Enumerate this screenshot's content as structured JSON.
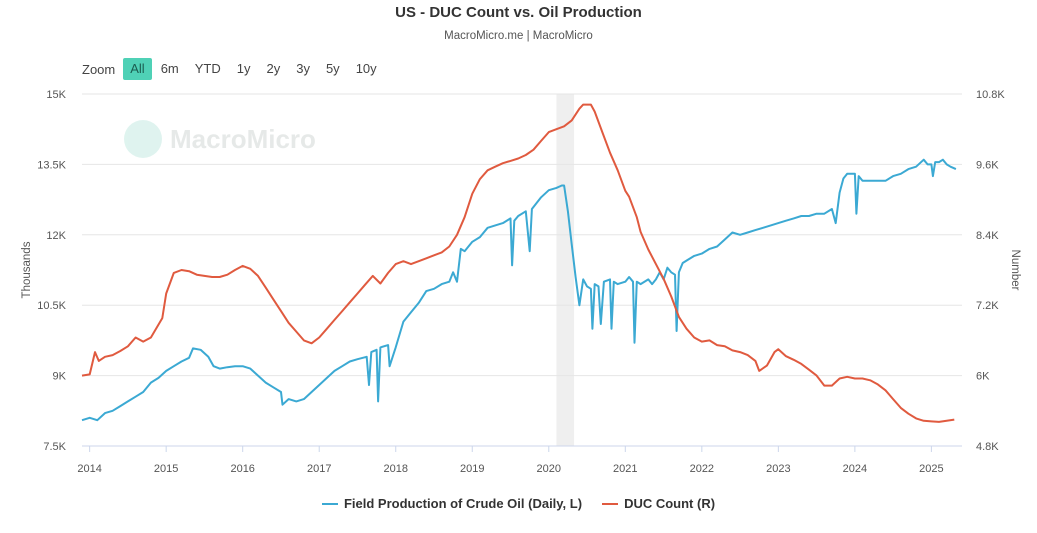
{
  "title": "US - DUC Count vs. Oil Production",
  "subtitle": "MacroMicro.me | MacroMicro",
  "watermark": "MacroMicro",
  "zoom": {
    "label": "Zoom",
    "buttons": [
      "All",
      "6m",
      "YTD",
      "1y",
      "2y",
      "3y",
      "5y",
      "10y"
    ],
    "active": "All"
  },
  "colors": {
    "oil": "#3ba9d3",
    "duc": "#e05a3f",
    "recession": "#efefef",
    "grid": "#e6e6e6"
  },
  "chart_data": {
    "type": "line",
    "title": "US - DUC Count vs. Oil Production",
    "x_ticks": [
      "2014",
      "2015",
      "2016",
      "2017",
      "2018",
      "2019",
      "2020",
      "2021",
      "2022",
      "2023",
      "2024",
      "2025"
    ],
    "xlim": [
      2013.9,
      2025.4
    ],
    "y_left": {
      "label": "Thousands",
      "ticks": [
        "7.5K",
        "9K",
        "10.5K",
        "12K",
        "13.5K",
        "15K"
      ],
      "range": [
        7500,
        15000
      ]
    },
    "y_right": {
      "label": "Number",
      "ticks": [
        "4.8K",
        "6K",
        "7.2K",
        "8.4K",
        "9.6K",
        "10.8K"
      ],
      "range": [
        4800,
        10800
      ]
    },
    "shaded_period": [
      2020.1,
      2020.33
    ],
    "grid": true,
    "legend_position": "bottom",
    "series": [
      {
        "name": "Field Production of Crude Oil (Daily, L)",
        "axis": "left",
        "points": [
          [
            2013.9,
            8050
          ],
          [
            2014.0,
            8100
          ],
          [
            2014.1,
            8050
          ],
          [
            2014.2,
            8200
          ],
          [
            2014.3,
            8250
          ],
          [
            2014.4,
            8350
          ],
          [
            2014.5,
            8450
          ],
          [
            2014.6,
            8550
          ],
          [
            2014.7,
            8650
          ],
          [
            2014.8,
            8850
          ],
          [
            2014.9,
            8950
          ],
          [
            2015.0,
            9100
          ],
          [
            2015.1,
            9200
          ],
          [
            2015.2,
            9300
          ],
          [
            2015.3,
            9380
          ],
          [
            2015.35,
            9580
          ],
          [
            2015.45,
            9550
          ],
          [
            2015.55,
            9400
          ],
          [
            2015.62,
            9200
          ],
          [
            2015.7,
            9150
          ],
          [
            2015.8,
            9180
          ],
          [
            2015.9,
            9200
          ],
          [
            2016.0,
            9200
          ],
          [
            2016.1,
            9150
          ],
          [
            2016.2,
            9000
          ],
          [
            2016.3,
            8850
          ],
          [
            2016.4,
            8750
          ],
          [
            2016.5,
            8650
          ],
          [
            2016.52,
            8380
          ],
          [
            2016.6,
            8500
          ],
          [
            2016.7,
            8450
          ],
          [
            2016.8,
            8500
          ],
          [
            2016.9,
            8650
          ],
          [
            2017.0,
            8800
          ],
          [
            2017.1,
            8950
          ],
          [
            2017.2,
            9100
          ],
          [
            2017.3,
            9200
          ],
          [
            2017.4,
            9300
          ],
          [
            2017.5,
            9350
          ],
          [
            2017.62,
            9400
          ],
          [
            2017.65,
            8800
          ],
          [
            2017.68,
            9500
          ],
          [
            2017.75,
            9550
          ],
          [
            2017.77,
            8450
          ],
          [
            2017.8,
            9600
          ],
          [
            2017.9,
            9650
          ],
          [
            2017.92,
            9200
          ],
          [
            2018.0,
            9600
          ],
          [
            2018.1,
            10150
          ],
          [
            2018.2,
            10350
          ],
          [
            2018.3,
            10550
          ],
          [
            2018.4,
            10800
          ],
          [
            2018.5,
            10850
          ],
          [
            2018.6,
            10950
          ],
          [
            2018.7,
            11000
          ],
          [
            2018.75,
            11200
          ],
          [
            2018.8,
            11000
          ],
          [
            2018.85,
            11700
          ],
          [
            2018.9,
            11650
          ],
          [
            2019.0,
            11850
          ],
          [
            2019.1,
            11950
          ],
          [
            2019.2,
            12150
          ],
          [
            2019.3,
            12200
          ],
          [
            2019.4,
            12250
          ],
          [
            2019.5,
            12350
          ],
          [
            2019.52,
            11350
          ],
          [
            2019.55,
            12300
          ],
          [
            2019.6,
            12400
          ],
          [
            2019.7,
            12500
          ],
          [
            2019.75,
            11650
          ],
          [
            2019.78,
            12550
          ],
          [
            2019.9,
            12800
          ],
          [
            2020.0,
            12950
          ],
          [
            2020.1,
            13000
          ],
          [
            2020.17,
            13050
          ],
          [
            2020.2,
            13050
          ],
          [
            2020.25,
            12500
          ],
          [
            2020.3,
            11800
          ],
          [
            2020.35,
            11100
          ],
          [
            2020.4,
            10500
          ],
          [
            2020.45,
            11050
          ],
          [
            2020.5,
            10900
          ],
          [
            2020.55,
            10850
          ],
          [
            2020.57,
            10000
          ],
          [
            2020.6,
            10950
          ],
          [
            2020.65,
            10900
          ],
          [
            2020.68,
            10100
          ],
          [
            2020.72,
            11000
          ],
          [
            2020.8,
            11050
          ],
          [
            2020.82,
            10000
          ],
          [
            2020.85,
            11000
          ],
          [
            2020.9,
            10950
          ],
          [
            2021.0,
            11000
          ],
          [
            2021.05,
            11100
          ],
          [
            2021.1,
            11000
          ],
          [
            2021.12,
            9700
          ],
          [
            2021.15,
            11000
          ],
          [
            2021.2,
            10950
          ],
          [
            2021.3,
            11050
          ],
          [
            2021.35,
            10950
          ],
          [
            2021.4,
            11050
          ],
          [
            2021.45,
            11200
          ],
          [
            2021.5,
            11050
          ],
          [
            2021.55,
            11300
          ],
          [
            2021.6,
            11200
          ],
          [
            2021.65,
            11150
          ],
          [
            2021.67,
            9950
          ],
          [
            2021.7,
            11200
          ],
          [
            2021.75,
            11400
          ],
          [
            2021.8,
            11450
          ],
          [
            2021.9,
            11550
          ],
          [
            2022.0,
            11600
          ],
          [
            2022.1,
            11700
          ],
          [
            2022.2,
            11750
          ],
          [
            2022.3,
            11900
          ],
          [
            2022.4,
            12050
          ],
          [
            2022.5,
            12000
          ],
          [
            2022.6,
            12050
          ],
          [
            2022.7,
            12100
          ],
          [
            2022.8,
            12150
          ],
          [
            2022.9,
            12200
          ],
          [
            2023.0,
            12250
          ],
          [
            2023.1,
            12300
          ],
          [
            2023.2,
            12350
          ],
          [
            2023.3,
            12400
          ],
          [
            2023.4,
            12400
          ],
          [
            2023.5,
            12450
          ],
          [
            2023.6,
            12450
          ],
          [
            2023.7,
            12550
          ],
          [
            2023.75,
            12250
          ],
          [
            2023.8,
            12900
          ],
          [
            2023.85,
            13200
          ],
          [
            2023.9,
            13300
          ],
          [
            2024.0,
            13300
          ],
          [
            2024.02,
            12450
          ],
          [
            2024.05,
            13250
          ],
          [
            2024.1,
            13150
          ],
          [
            2024.2,
            13150
          ],
          [
            2024.3,
            13150
          ],
          [
            2024.4,
            13150
          ],
          [
            2024.5,
            13250
          ],
          [
            2024.6,
            13300
          ],
          [
            2024.7,
            13400
          ],
          [
            2024.8,
            13450
          ],
          [
            2024.9,
            13600
          ],
          [
            2024.95,
            13500
          ],
          [
            2025.0,
            13500
          ],
          [
            2025.02,
            13250
          ],
          [
            2025.05,
            13550
          ],
          [
            2025.1,
            13550
          ],
          [
            2025.15,
            13600
          ],
          [
            2025.2,
            13500
          ],
          [
            2025.25,
            13450
          ],
          [
            2025.32,
            13400
          ]
        ]
      },
      {
        "name": "DUC Count (R)",
        "axis": "right",
        "points": [
          [
            2013.9,
            6000
          ],
          [
            2014.0,
            6020
          ],
          [
            2014.07,
            6400
          ],
          [
            2014.12,
            6250
          ],
          [
            2014.2,
            6320
          ],
          [
            2014.3,
            6350
          ],
          [
            2014.4,
            6420
          ],
          [
            2014.5,
            6500
          ],
          [
            2014.6,
            6650
          ],
          [
            2014.7,
            6580
          ],
          [
            2014.8,
            6650
          ],
          [
            2014.95,
            6980
          ],
          [
            2015.0,
            7400
          ],
          [
            2015.1,
            7750
          ],
          [
            2015.2,
            7800
          ],
          [
            2015.3,
            7780
          ],
          [
            2015.4,
            7720
          ],
          [
            2015.5,
            7700
          ],
          [
            2015.6,
            7680
          ],
          [
            2015.7,
            7680
          ],
          [
            2015.8,
            7720
          ],
          [
            2015.9,
            7800
          ],
          [
            2016.0,
            7870
          ],
          [
            2016.1,
            7820
          ],
          [
            2016.2,
            7700
          ],
          [
            2016.3,
            7500
          ],
          [
            2016.4,
            7300
          ],
          [
            2016.5,
            7100
          ],
          [
            2016.6,
            6900
          ],
          [
            2016.7,
            6750
          ],
          [
            2016.8,
            6600
          ],
          [
            2016.9,
            6550
          ],
          [
            2017.0,
            6650
          ],
          [
            2017.1,
            6800
          ],
          [
            2017.2,
            6950
          ],
          [
            2017.3,
            7100
          ],
          [
            2017.4,
            7250
          ],
          [
            2017.5,
            7400
          ],
          [
            2017.6,
            7550
          ],
          [
            2017.7,
            7700
          ],
          [
            2017.8,
            7570
          ],
          [
            2017.9,
            7750
          ],
          [
            2018.0,
            7900
          ],
          [
            2018.1,
            7950
          ],
          [
            2018.2,
            7900
          ],
          [
            2018.3,
            7950
          ],
          [
            2018.4,
            8000
          ],
          [
            2018.5,
            8050
          ],
          [
            2018.6,
            8100
          ],
          [
            2018.7,
            8200
          ],
          [
            2018.8,
            8400
          ],
          [
            2018.9,
            8700
          ],
          [
            2019.0,
            9100
          ],
          [
            2019.1,
            9350
          ],
          [
            2019.2,
            9500
          ],
          [
            2019.3,
            9560
          ],
          [
            2019.4,
            9620
          ],
          [
            2019.5,
            9660
          ],
          [
            2019.6,
            9700
          ],
          [
            2019.7,
            9760
          ],
          [
            2019.8,
            9850
          ],
          [
            2019.9,
            10000
          ],
          [
            2020.0,
            10150
          ],
          [
            2020.1,
            10200
          ],
          [
            2020.2,
            10250
          ],
          [
            2020.3,
            10350
          ],
          [
            2020.4,
            10550
          ],
          [
            2020.45,
            10620
          ],
          [
            2020.55,
            10620
          ],
          [
            2020.6,
            10500
          ],
          [
            2020.7,
            10150
          ],
          [
            2020.8,
            9800
          ],
          [
            2020.9,
            9500
          ],
          [
            2021.0,
            9150
          ],
          [
            2021.05,
            9050
          ],
          [
            2021.15,
            8700
          ],
          [
            2021.2,
            8450
          ],
          [
            2021.3,
            8150
          ],
          [
            2021.4,
            7900
          ],
          [
            2021.5,
            7650
          ],
          [
            2021.6,
            7350
          ],
          [
            2021.7,
            7000
          ],
          [
            2021.8,
            6800
          ],
          [
            2021.9,
            6650
          ],
          [
            2022.0,
            6580
          ],
          [
            2022.1,
            6600
          ],
          [
            2022.2,
            6520
          ],
          [
            2022.3,
            6500
          ],
          [
            2022.4,
            6430
          ],
          [
            2022.5,
            6400
          ],
          [
            2022.6,
            6350
          ],
          [
            2022.7,
            6250
          ],
          [
            2022.75,
            6080
          ],
          [
            2022.85,
            6170
          ],
          [
            2022.95,
            6400
          ],
          [
            2023.0,
            6450
          ],
          [
            2023.1,
            6330
          ],
          [
            2023.2,
            6270
          ],
          [
            2023.3,
            6200
          ],
          [
            2023.4,
            6100
          ],
          [
            2023.5,
            6000
          ],
          [
            2023.6,
            5830
          ],
          [
            2023.7,
            5830
          ],
          [
            2023.8,
            5950
          ],
          [
            2023.9,
            5980
          ],
          [
            2024.0,
            5950
          ],
          [
            2024.1,
            5950
          ],
          [
            2024.2,
            5920
          ],
          [
            2024.3,
            5850
          ],
          [
            2024.4,
            5750
          ],
          [
            2024.5,
            5600
          ],
          [
            2024.6,
            5450
          ],
          [
            2024.7,
            5350
          ],
          [
            2024.8,
            5270
          ],
          [
            2024.9,
            5230
          ],
          [
            2025.0,
            5220
          ],
          [
            2025.1,
            5210
          ],
          [
            2025.2,
            5230
          ],
          [
            2025.3,
            5250
          ]
        ]
      }
    ]
  }
}
